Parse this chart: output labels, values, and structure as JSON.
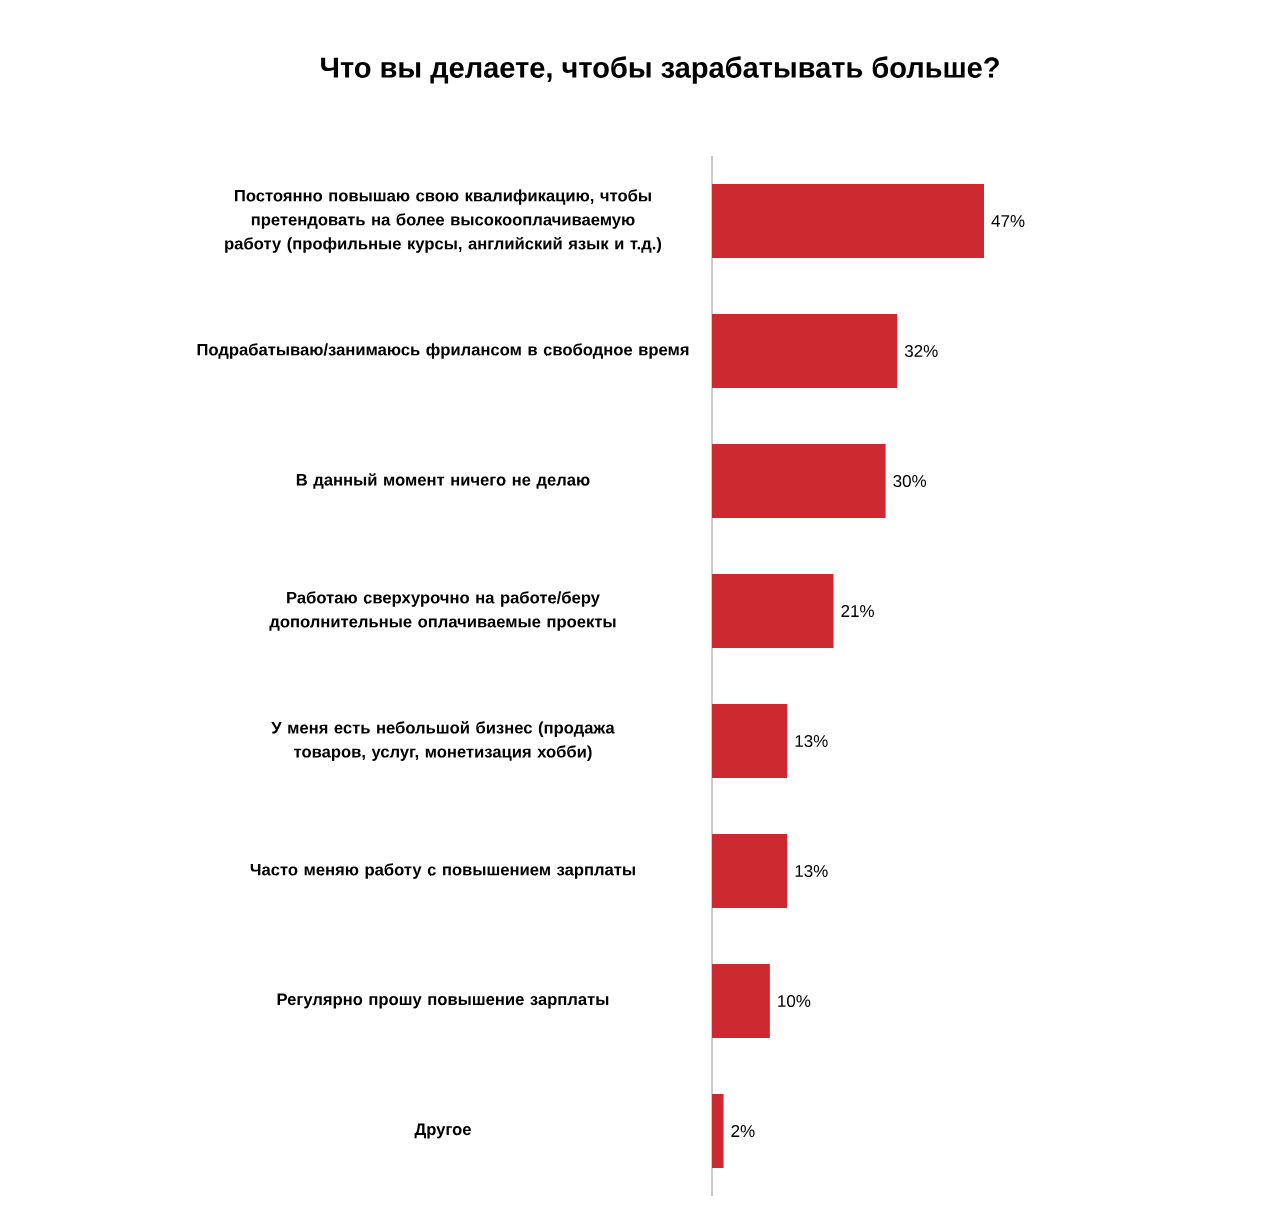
{
  "chart_data": {
    "type": "bar",
    "orientation": "horizontal",
    "title": "Что вы делаете, чтобы зарабатывать больше?",
    "categories": [
      "Постоянно повышаю свою квалификацию, чтобы претендовать на более высокооплачиваемую работу (профильные курсы, английский язык и т.д.)",
      "Подрабатываю/занимаюсь фрилансом в свободное время",
      "В данный момент ничего не делаю",
      "Работаю сверхурочно на работе/беру дополнительные оплачиваемые проекты",
      "У меня есть небольшой бизнес (продажа товаров, услуг, монетизация хобби)",
      "Часто меняю работу с повышением зарплаты",
      "Регулярно прошу повышение зарплаты",
      "Другое"
    ],
    "values": [
      47,
      32,
      30,
      21,
      13,
      13,
      10,
      2
    ],
    "value_labels": [
      "47%",
      "32%",
      "30%",
      "21%",
      "13%",
      "13%",
      "10%",
      "2%"
    ],
    "color": "#cc2a30",
    "tick_labels": "y"
  }
}
